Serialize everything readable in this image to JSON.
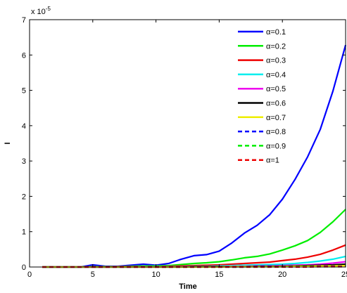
{
  "chart_data": {
    "type": "line",
    "title": "",
    "xlabel": "Time",
    "ylabel": "I",
    "y_multiplier_label": "x 10",
    "y_multiplier_exponent": "-5",
    "xlim": [
      0,
      25
    ],
    "ylim": [
      0,
      7
    ],
    "xticks": [
      "0",
      "5",
      "10",
      "15",
      "20",
      "25"
    ],
    "yticks": [
      "0",
      "1",
      "2",
      "3",
      "4",
      "5",
      "6",
      "7"
    ],
    "grid": false,
    "legend_position": "top-right",
    "x": [
      1,
      2,
      3,
      4,
      5,
      6,
      7,
      8,
      9,
      10,
      11,
      12,
      13,
      14,
      15,
      16,
      17,
      18,
      19,
      20,
      21,
      22,
      23,
      24,
      25
    ],
    "series": [
      {
        "name": "α=0.1",
        "color": "#0000ff",
        "dash": "solid",
        "values": [
          0,
          0,
          0,
          0,
          0.06,
          0.02,
          0.02,
          0.05,
          0.08,
          0.05,
          0.1,
          0.22,
          0.32,
          0.35,
          0.45,
          0.68,
          0.96,
          1.18,
          1.48,
          1.92,
          2.48,
          3.12,
          3.9,
          4.98,
          6.28
        ]
      },
      {
        "name": "α=0.2",
        "color": "#00ee00",
        "dash": "solid",
        "values": [
          0,
          0,
          0,
          0,
          0.01,
          0.01,
          0.01,
          0.02,
          0.03,
          0.03,
          0.04,
          0.07,
          0.1,
          0.12,
          0.15,
          0.2,
          0.26,
          0.3,
          0.37,
          0.48,
          0.6,
          0.75,
          0.98,
          1.28,
          1.63
        ]
      },
      {
        "name": "α=0.3",
        "color": "#ee0000",
        "dash": "solid",
        "values": [
          0,
          0,
          0,
          0,
          0,
          0,
          0.01,
          0.01,
          0.01,
          0.01,
          0.02,
          0.03,
          0.04,
          0.05,
          0.06,
          0.08,
          0.1,
          0.12,
          0.14,
          0.18,
          0.22,
          0.28,
          0.36,
          0.48,
          0.62
        ]
      },
      {
        "name": "α=0.4",
        "color": "#00eeee",
        "dash": "solid",
        "values": [
          0,
          0,
          0,
          0,
          0,
          0,
          0,
          0,
          0.01,
          0.01,
          0.01,
          0.01,
          0.02,
          0.02,
          0.03,
          0.04,
          0.05,
          0.06,
          0.07,
          0.08,
          0.1,
          0.13,
          0.17,
          0.22,
          0.3
        ]
      },
      {
        "name": "α=0.5",
        "color": "#ee00ee",
        "dash": "solid",
        "values": [
          0,
          0,
          0,
          0,
          0,
          0,
          0,
          0,
          0,
          0,
          0,
          0.01,
          0.01,
          0.01,
          0.01,
          0.02,
          0.02,
          0.03,
          0.03,
          0.04,
          0.05,
          0.06,
          0.08,
          0.11,
          0.15
        ]
      },
      {
        "name": "α=0.6",
        "color": "#000000",
        "dash": "solid",
        "values": [
          0,
          0,
          0,
          0,
          0,
          0,
          0,
          0,
          0,
          0,
          0,
          0,
          0.01,
          0.01,
          0.01,
          0.01,
          0.01,
          0.02,
          0.02,
          0.02,
          0.03,
          0.04,
          0.05,
          0.06,
          0.08
        ]
      },
      {
        "name": "α=0.7",
        "color": "#eeee00",
        "dash": "solid",
        "values": [
          0,
          0,
          0,
          0,
          0,
          0,
          0,
          0,
          0,
          0,
          0,
          0,
          0,
          0,
          0,
          0.01,
          0.01,
          0.01,
          0.01,
          0.01,
          0.02,
          0.02,
          0.03,
          0.03,
          0.04
        ]
      },
      {
        "name": "α=0.8",
        "color": "#0000ff",
        "dash": "dashed",
        "values": [
          0,
          0,
          0,
          0,
          0,
          0,
          0,
          0,
          0,
          0,
          0,
          0,
          0,
          0,
          0,
          0,
          0,
          0.01,
          0.01,
          0.01,
          0.01,
          0.01,
          0.02,
          0.02,
          0.02
        ]
      },
      {
        "name": "α=0.9",
        "color": "#00ee00",
        "dash": "dashed",
        "values": [
          0,
          0,
          0,
          0,
          0,
          0,
          0,
          0,
          0,
          0,
          0,
          0,
          0,
          0,
          0,
          0,
          0,
          0,
          0,
          0.01,
          0.01,
          0.01,
          0.01,
          0.01,
          0.01
        ]
      },
      {
        "name": "α=1",
        "color": "#ee0000",
        "dash": "dashed",
        "values": [
          0,
          0,
          0,
          0,
          0,
          0,
          0,
          0,
          0,
          0,
          0,
          0,
          0,
          0,
          0,
          0,
          0,
          0,
          0,
          0,
          0,
          0,
          0.01,
          0.01,
          0.01
        ]
      }
    ]
  }
}
